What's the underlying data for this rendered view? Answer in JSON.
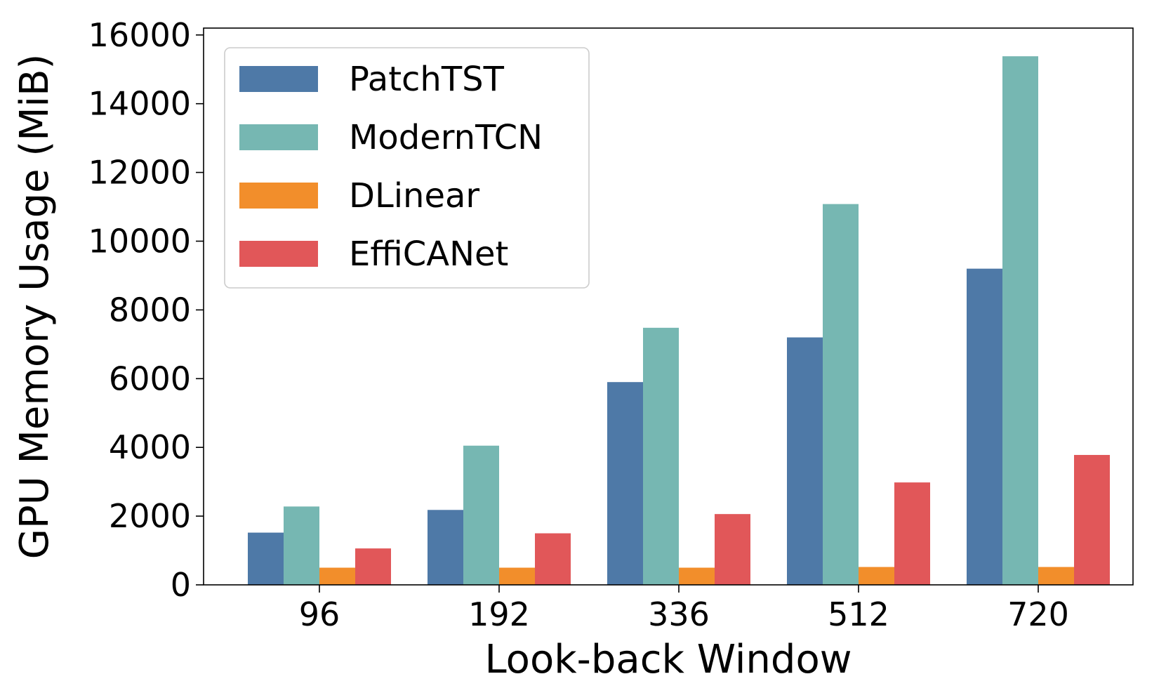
{
  "chart_data": {
    "type": "bar",
    "title": "",
    "xlabel": "Look-back Window",
    "ylabel": "GPU Memory Usage (MiB)",
    "categories": [
      "96",
      "192",
      "336",
      "512",
      "720"
    ],
    "ylim": [
      0,
      16200
    ],
    "yticks": [
      0,
      2000,
      4000,
      6000,
      8000,
      10000,
      12000,
      14000,
      16000
    ],
    "yticklabels": [
      "0",
      "2000",
      "4000",
      "6000",
      "8000",
      "10000",
      "12000",
      "14000",
      "16000"
    ],
    "legend_position": "top-left",
    "grid": false,
    "series": [
      {
        "name": "PatchTST",
        "color": "#4e79a7",
        "values": [
          1520,
          2180,
          5900,
          7200,
          9200
        ]
      },
      {
        "name": "ModernTCN",
        "color": "#76b7b2",
        "values": [
          2280,
          4050,
          7480,
          11080,
          15380
        ]
      },
      {
        "name": "DLinear",
        "color": "#f28e2b",
        "values": [
          500,
          500,
          500,
          520,
          520
        ]
      },
      {
        "name": "EffiCANet",
        "color": "#e15759",
        "values": [
          1060,
          1500,
          2060,
          2980,
          3780
        ]
      }
    ]
  }
}
